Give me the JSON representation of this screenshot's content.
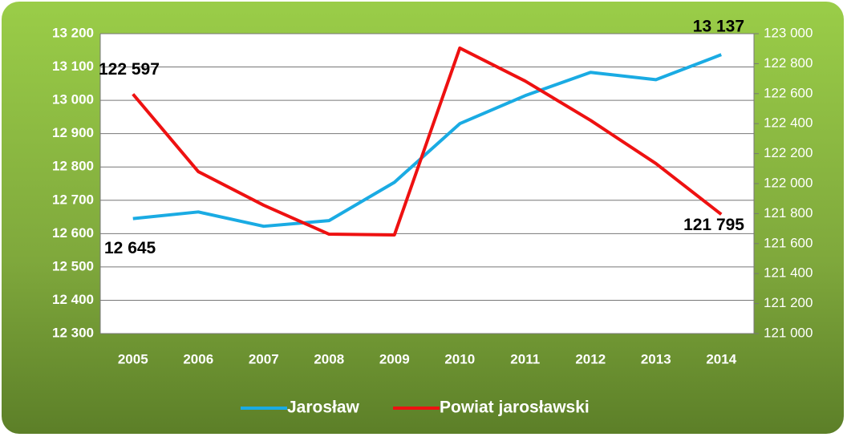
{
  "chart_data": {
    "type": "line",
    "categories": [
      "2005",
      "2006",
      "2007",
      "2008",
      "2009",
      "2010",
      "2011",
      "2012",
      "2013",
      "2014"
    ],
    "series": [
      {
        "name": "Jarosław",
        "color": "#1aabe3",
        "axis": "y",
        "values": [
          12645,
          12665,
          12622,
          12639,
          12754,
          12930,
          13014,
          13084,
          13062,
          13137
        ],
        "value_labels": [
          "12 645",
          null,
          null,
          null,
          null,
          null,
          null,
          null,
          null,
          "13 137"
        ]
      },
      {
        "name": "Powiat jarosławski",
        "color": "#ee1111",
        "axis": "y2",
        "values": [
          122597,
          122080,
          121856,
          121663,
          121658,
          122904,
          122684,
          122422,
          122134,
          121795
        ],
        "value_labels": [
          "122 597",
          null,
          null,
          null,
          null,
          null,
          null,
          null,
          null,
          "121 795"
        ]
      }
    ],
    "ylim": [
      12300,
      13200
    ],
    "yticks": [
      {
        "value": 12300,
        "label": "12 300"
      },
      {
        "value": 12400,
        "label": "12 400"
      },
      {
        "value": 12500,
        "label": "12 500"
      },
      {
        "value": 12600,
        "label": "12 600"
      },
      {
        "value": 12700,
        "label": "12 700"
      },
      {
        "value": 12800,
        "label": "12 800"
      },
      {
        "value": 12900,
        "label": "12 900"
      },
      {
        "value": 13000,
        "label": "13 000"
      },
      {
        "value": 13100,
        "label": "13 100"
      },
      {
        "value": 13200,
        "label": "13 200"
      }
    ],
    "y2lim": [
      121000,
      123000
    ],
    "y2ticks": [
      {
        "value": 121000,
        "label": "121 000"
      },
      {
        "value": 121200,
        "label": "121 200"
      },
      {
        "value": 121400,
        "label": "121 400"
      },
      {
        "value": 121600,
        "label": "121 600"
      },
      {
        "value": 121800,
        "label": "121 800"
      },
      {
        "value": 122000,
        "label": "122 000"
      },
      {
        "value": 122200,
        "label": "122 200"
      },
      {
        "value": 122400,
        "label": "122 400"
      },
      {
        "value": 122600,
        "label": "122 600"
      },
      {
        "value": 122800,
        "label": "122 800"
      },
      {
        "value": 123000,
        "label": "123 000"
      }
    ],
    "grid": true,
    "legend": "bottom"
  }
}
